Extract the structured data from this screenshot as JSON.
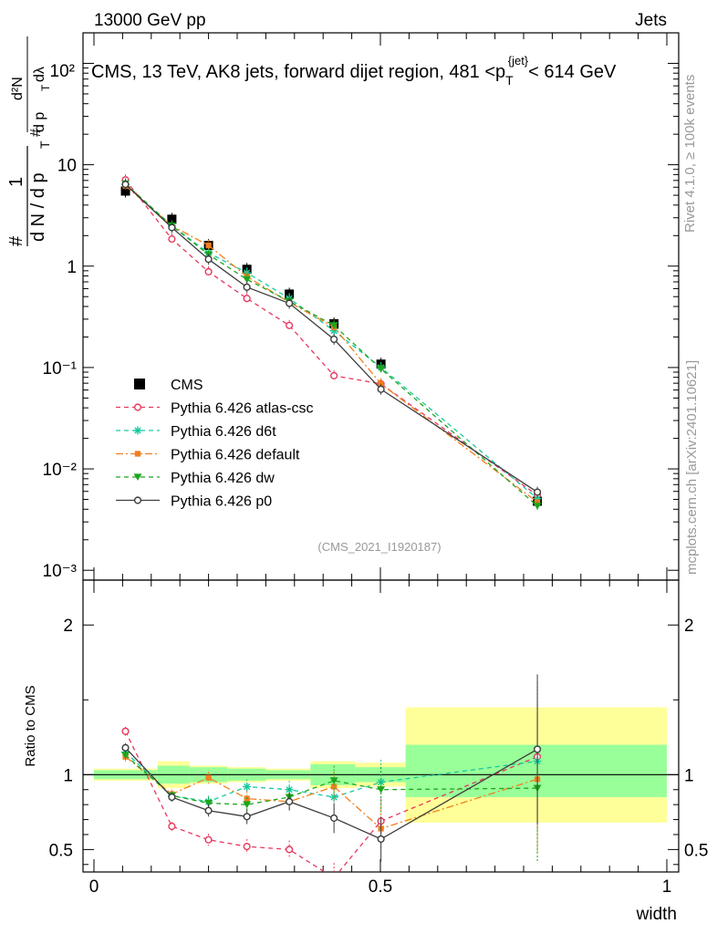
{
  "header": {
    "left": "13000 GeV pp",
    "right": "Jets"
  },
  "side": {
    "rivet": "Rivet 4.1.0, ≥ 100k events",
    "mcplots": "mcplots.cern.ch [arXiv:2401.10621]"
  },
  "chart_data": {
    "type": "line",
    "title_parts": {
      "main": "CMS, 13 TeV, AK8 jets, forward dijet region, 481 <p",
      "sub": "T",
      "sup": "{jet}",
      "tail": "< 614 GeV"
    },
    "watermark": "(CMS_2021_I1920187)",
    "xlabel": "width",
    "ylabel_ratio": "Ratio to CMS",
    "ylabel_parts": {
      "num": "1",
      "den": "d N / d p",
      "hash": "#",
      "d2n": "d²N",
      "dpt": "d p",
      "dlam": "dλ",
      "T": "T"
    },
    "xlim": [
      0,
      1
    ],
    "main_ylim": [
      0.0008,
      200
    ],
    "main_yscale": "log",
    "main_ytick_labels": [
      "10⁻³",
      "10⁻²",
      "10⁻¹",
      "1",
      "10",
      "10²"
    ],
    "ratio_ylim": [
      0.35,
      2.3
    ],
    "ratio_ytick_labels": [
      "0.5",
      "1",
      "2"
    ],
    "x_tick_labels": [
      "0",
      "0.5",
      "1"
    ],
    "bins": [
      0.0,
      0.111,
      0.167,
      0.233,
      0.3,
      0.378,
      0.456,
      0.544,
      1.0
    ],
    "ratio_bands": {
      "stat": [
        [
          0.97,
          1.03
        ],
        [
          0.94,
          1.06
        ],
        [
          0.95,
          1.05
        ],
        [
          0.96,
          1.04
        ],
        [
          0.97,
          1.03
        ],
        [
          0.93,
          1.07
        ],
        [
          0.95,
          1.05
        ],
        [
          0.85,
          1.2
        ]
      ],
      "total": [
        [
          0.96,
          1.04
        ],
        [
          0.91,
          1.09
        ],
        [
          0.94,
          1.06
        ],
        [
          0.95,
          1.05
        ],
        [
          0.96,
          1.04
        ],
        [
          0.91,
          1.09
        ],
        [
          0.92,
          1.08
        ],
        [
          0.68,
          1.45
        ]
      ]
    },
    "x": [
      0.055,
      0.136,
      0.2,
      0.267,
      0.341,
      0.419,
      0.501,
      0.774
    ],
    "data": {
      "name": "CMS",
      "values": [
        5.5,
        2.9,
        1.6,
        0.93,
        0.53,
        0.27,
        0.108,
        0.0048
      ]
    },
    "series": [
      {
        "name": "Pythia 6.426 atlas-csc",
        "color": "#e8375c",
        "marker": "open-circle",
        "dash": "5,4",
        "values": [
          7.1,
          1.85,
          0.88,
          0.48,
          0.26,
          0.083,
          0.069,
          0.0055
        ],
        "ratio": [
          1.29,
          0.655,
          0.565,
          0.52,
          0.5,
          0.31,
          0.69,
          1.12
        ],
        "ratio_err": [
          0.03,
          0.03,
          0.04,
          0.05,
          0.06,
          0.1,
          0.15,
          0.5
        ]
      },
      {
        "name": "Pythia 6.426 d6t",
        "color": "#18c9a0",
        "marker": "star",
        "dash": "5,4",
        "values": [
          6.4,
          2.5,
          1.35,
          0.86,
          0.48,
          0.23,
          0.1,
          0.0051
        ],
        "ratio": [
          1.15,
          0.86,
          0.82,
          0.92,
          0.9,
          0.85,
          0.95,
          1.09
        ],
        "ratio_err": [
          0.03,
          0.03,
          0.04,
          0.05,
          0.06,
          0.1,
          0.15,
          0.5
        ]
      },
      {
        "name": "Pythia 6.426 default",
        "color": "#f07f1e",
        "marker": "filled-square",
        "dash": "8,3,2,3",
        "values": [
          6.2,
          2.5,
          1.6,
          0.79,
          0.44,
          0.25,
          0.069,
          0.0047
        ],
        "ratio": [
          1.12,
          0.87,
          0.98,
          0.84,
          0.82,
          0.92,
          0.64,
          0.97
        ],
        "ratio_err": [
          0.03,
          0.03,
          0.04,
          0.05,
          0.06,
          0.1,
          0.15,
          0.5
        ]
      },
      {
        "name": "Pythia 6.426 dw",
        "color": "#1ca61c",
        "marker": "filled-triangle-down",
        "dash": "5,4",
        "values": [
          6.5,
          2.5,
          1.3,
          0.74,
          0.45,
          0.26,
          0.097,
          0.0043
        ],
        "ratio": [
          1.13,
          0.86,
          0.81,
          0.8,
          0.85,
          0.96,
          0.9,
          0.91
        ],
        "ratio_err": [
          0.03,
          0.03,
          0.04,
          0.05,
          0.06,
          0.1,
          0.15,
          0.5
        ]
      },
      {
        "name": "Pythia 6.426 p0",
        "color": "#3c3c3c",
        "marker": "open-circle",
        "dash": "none",
        "values": [
          6.4,
          2.4,
          1.17,
          0.62,
          0.43,
          0.19,
          0.061,
          0.0059
        ],
        "ratio": [
          1.18,
          0.85,
          0.76,
          0.72,
          0.82,
          0.71,
          0.57,
          1.17
        ],
        "ratio_err": [
          0.03,
          0.03,
          0.04,
          0.05,
          0.06,
          0.1,
          0.15,
          0.5
        ]
      }
    ]
  }
}
